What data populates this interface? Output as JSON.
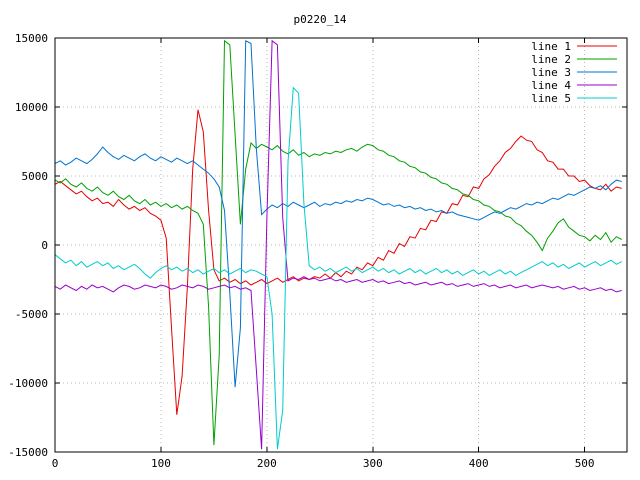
{
  "chart_data": {
    "type": "line",
    "title": "p0220_14",
    "background": "#ffffff",
    "grid": true,
    "legend_position": "top-right",
    "xlim": [
      0,
      540
    ],
    "ylim": [
      -15000,
      15000
    ],
    "xticks": [
      0,
      100,
      200,
      300,
      400,
      500
    ],
    "yticks": [
      -15000,
      -10000,
      -5000,
      0,
      5000,
      10000,
      15000
    ],
    "x_start": 0,
    "x_step": 5,
    "series": [
      {
        "name": "line 1",
        "color": "#e60000",
        "values": [
          4400,
          4600,
          4300,
          4000,
          3700,
          3900,
          3500,
          3200,
          3400,
          3000,
          3100,
          2800,
          3300,
          2900,
          2600,
          2800,
          2500,
          2700,
          2300,
          2100,
          1800,
          500,
          -6000,
          -12300,
          -9500,
          -3000,
          5500,
          9800,
          8200,
          2500,
          -1800,
          -2600,
          -2400,
          -2700,
          -2500,
          -2800,
          -2600,
          -2900,
          -2700,
          -2500,
          -2800,
          -2600,
          -2400,
          -2700,
          -2500,
          -2300,
          -2600,
          -2400,
          -2500,
          -2300,
          -2400,
          -2100,
          -2400,
          -2000,
          -2300,
          -1900,
          -2100,
          -1600,
          -1800,
          -1300,
          -1500,
          -900,
          -1100,
          -400,
          -600,
          100,
          -100,
          600,
          500,
          1200,
          1100,
          1800,
          1700,
          2400,
          2300,
          3000,
          2900,
          3600,
          3500,
          4200,
          4100,
          4800,
          5100,
          5700,
          6100,
          6700,
          7000,
          7500,
          7900,
          7600,
          7500,
          6900,
          6700,
          6100,
          6000,
          5500,
          5500,
          5000,
          5000,
          4600,
          4700,
          4300,
          4100,
          4000,
          4400,
          3900,
          4200,
          4100
        ]
      },
      {
        "name": "line 2",
        "color": "#00a000",
        "values": [
          4700,
          4500,
          4800,
          4400,
          4200,
          4500,
          4100,
          3900,
          4200,
          3800,
          3600,
          3900,
          3500,
          3300,
          3600,
          3200,
          3000,
          3300,
          2900,
          3100,
          2800,
          3000,
          2700,
          2900,
          2600,
          2800,
          2500,
          2300,
          1500,
          -4500,
          -14500,
          -8000,
          14800,
          14500,
          8000,
          1500,
          5500,
          7400,
          7000,
          7300,
          7100,
          6900,
          7200,
          6800,
          6600,
          6900,
          6500,
          6700,
          6400,
          6600,
          6500,
          6700,
          6600,
          6800,
          6700,
          6900,
          7000,
          6800,
          7100,
          7300,
          7200,
          6900,
          6800,
          6500,
          6400,
          6100,
          6000,
          5700,
          5600,
          5300,
          5200,
          4900,
          4800,
          4500,
          4400,
          4100,
          4000,
          3700,
          3600,
          3300,
          3200,
          2900,
          2800,
          2500,
          2400,
          2100,
          2000,
          1600,
          1400,
          1000,
          700,
          200,
          -400,
          500,
          1000,
          1600,
          1900,
          1300,
          1000,
          700,
          600,
          300,
          700,
          400,
          900,
          200,
          600,
          400
        ]
      },
      {
        "name": "line 3",
        "color": "#0073cf",
        "values": [
          5900,
          6100,
          5800,
          6000,
          6300,
          6100,
          5900,
          6200,
          6600,
          7100,
          6700,
          6400,
          6200,
          6500,
          6300,
          6100,
          6400,
          6600,
          6300,
          6100,
          6400,
          6200,
          6000,
          6300,
          6100,
          5900,
          6100,
          5800,
          5500,
          5200,
          4800,
          4200,
          2500,
          -3500,
          -10300,
          -6000,
          14800,
          14600,
          7000,
          2200,
          2600,
          2900,
          2700,
          3000,
          2800,
          3100,
          2900,
          2700,
          2900,
          3100,
          2800,
          3000,
          2900,
          3100,
          3000,
          3200,
          3100,
          3300,
          3200,
          3400,
          3300,
          3100,
          2900,
          3000,
          2800,
          2900,
          2700,
          2800,
          2600,
          2700,
          2500,
          2600,
          2400,
          2500,
          2300,
          2400,
          2200,
          2100,
          2000,
          1900,
          1800,
          2000,
          2200,
          2400,
          2300,
          2500,
          2700,
          2600,
          2800,
          3000,
          2900,
          3100,
          3000,
          3200,
          3400,
          3300,
          3500,
          3700,
          3600,
          3800,
          4000,
          4200,
          4100,
          4300,
          4000,
          4400,
          4700,
          4600
        ]
      },
      {
        "name": "line 4",
        "color": "#9900cc",
        "values": [
          -3000,
          -3200,
          -2900,
          -3100,
          -3300,
          -3000,
          -3200,
          -2900,
          -3100,
          -3000,
          -3200,
          -3400,
          -3100,
          -2900,
          -3000,
          -3200,
          -3100,
          -2900,
          -3000,
          -3100,
          -2900,
          -3000,
          -3200,
          -3100,
          -2900,
          -3000,
          -3100,
          -2900,
          -3000,
          -3200,
          -3100,
          -3000,
          -2900,
          -3100,
          -3000,
          -3200,
          -3100,
          -3300,
          -9000,
          -14800,
          2000,
          14800,
          14500,
          2000,
          -2600,
          -2400,
          -2500,
          -2300,
          -2500,
          -2400,
          -2600,
          -2500,
          -2400,
          -2600,
          -2500,
          -2700,
          -2600,
          -2500,
          -2700,
          -2600,
          -2500,
          -2700,
          -2600,
          -2800,
          -2700,
          -2600,
          -2800,
          -2700,
          -2900,
          -2800,
          -2700,
          -2900,
          -2800,
          -2700,
          -2900,
          -2800,
          -3000,
          -2900,
          -2800,
          -3000,
          -2900,
          -2800,
          -3000,
          -2900,
          -3100,
          -3000,
          -2900,
          -3100,
          -3000,
          -2900,
          -3100,
          -3000,
          -2900,
          -3000,
          -3100,
          -3000,
          -3200,
          -3100,
          -3000,
          -3200,
          -3100,
          -3300,
          -3200,
          -3100,
          -3300,
          -3200,
          -3400,
          -3300
        ]
      },
      {
        "name": "line 5",
        "color": "#00cccc",
        "values": [
          -700,
          -1000,
          -1300,
          -1100,
          -1500,
          -1200,
          -1600,
          -1400,
          -1200,
          -1500,
          -1300,
          -1700,
          -1500,
          -1800,
          -1600,
          -1400,
          -1700,
          -2100,
          -2400,
          -2000,
          -1700,
          -1500,
          -1800,
          -1600,
          -1900,
          -1700,
          -2000,
          -1800,
          -2100,
          -1900,
          -1700,
          -2000,
          -1800,
          -2100,
          -1900,
          -1700,
          -2000,
          -1800,
          -1900,
          -2100,
          -2300,
          -5000,
          -14800,
          -12000,
          6000,
          11400,
          11000,
          3000,
          -1500,
          -1800,
          -1600,
          -1900,
          -1700,
          -2000,
          -1800,
          -1600,
          -1900,
          -1700,
          -2000,
          -1800,
          -1600,
          -1900,
          -1700,
          -2000,
          -1800,
          -2100,
          -1900,
          -1700,
          -2000,
          -1800,
          -2100,
          -1900,
          -1700,
          -2000,
          -1800,
          -2100,
          -1900,
          -2200,
          -2000,
          -1800,
          -2100,
          -1900,
          -2200,
          -2000,
          -1800,
          -2100,
          -1900,
          -2200,
          -2000,
          -1800,
          -1600,
          -1400,
          -1200,
          -1500,
          -1300,
          -1600,
          -1400,
          -1700,
          -1500,
          -1300,
          -1600,
          -1400,
          -1200,
          -1500,
          -1300,
          -1100,
          -1400,
          -1200
        ]
      }
    ]
  }
}
